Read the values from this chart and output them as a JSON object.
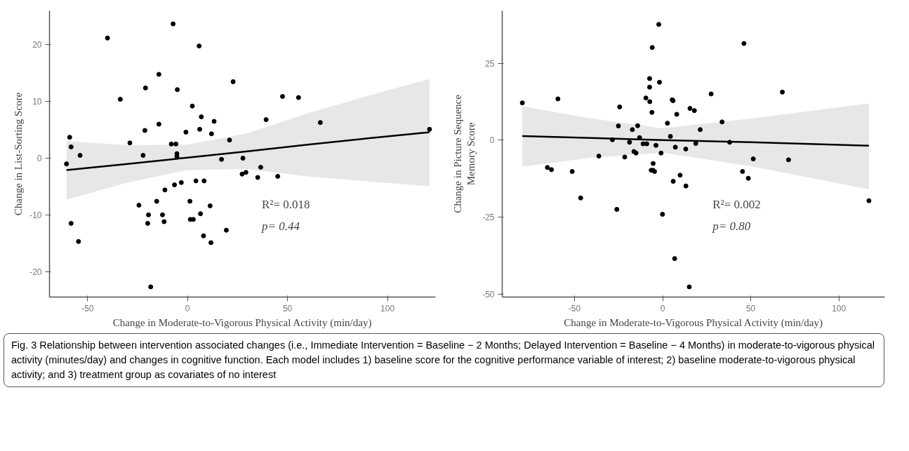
{
  "chart_data": [
    {
      "type": "scatter",
      "xlabel": "Change in Moderate-to-Vigorous Physical Activity (min/day)",
      "ylabel": "Change in List-Sorting Score",
      "xlim": [
        -69,
        124
      ],
      "ylim": [
        -24.5,
        26
      ],
      "xticks": [
        -50,
        0,
        50,
        100
      ],
      "yticks": [
        -20,
        -10,
        0,
        10,
        20
      ],
      "grid": false,
      "annotations": [
        "R²= 0.018",
        "p= 0.44",
        "Fig. 3 Relationship between intervention associated changes (i.e., Immediate Intervention = Baseline − 2 Months; Delayed Intervention = Baseline − 4 Months) in moderate-to-vigorous physical activity (minutes/day) and changes in cognitive function. Each model includes 1) baseline score for the cognitive performance variable of interest; 2) baseline moderate-to-vigorous physical activity; and 3) treatment group as covariates of no interest"
      ],
      "series": [
        {
          "marker": "circle",
          "color": "#000000",
          "x": [
            -60.5,
            -58.9,
            -58.2,
            -53.7,
            -40.0,
            -33.6,
            -28.8,
            -22.2,
            -21.3,
            -21.0,
            -14.3,
            -14.3,
            -8.1,
            -7.2,
            -5.8,
            -5.3,
            -5.3,
            -5.1,
            -0.8,
            2.4,
            5.8,
            6.1,
            6.9,
            12.0,
            13.3,
            17.0,
            21.0,
            22.8,
            27.7,
            27.3,
            29.2,
            47.5,
            55.5,
            39.3,
            66.4,
            121.0,
            36.6,
            35.1,
            45.1,
            -58.2,
            -54.5,
            -24.3,
            -19.5,
            -19.9,
            -18.4,
            -15.4,
            -12.5,
            -11.7,
            -11.3,
            -6.5,
            -3.1,
            1.2,
            1.4,
            2.9,
            4.2,
            6.5,
            8.0,
            8.3,
            11.3,
            11.7,
            19.4
          ],
          "values": [
            -1.0,
            3.7,
            2.0,
            0.5,
            21.2,
            10.4,
            2.7,
            0.5,
            4.9,
            12.4,
            14.8,
            6.0,
            2.5,
            23.7,
            2.5,
            0.8,
            0.3,
            12.1,
            4.6,
            9.2,
            19.8,
            5.1,
            7.3,
            4.3,
            6.5,
            -0.2,
            3.2,
            13.5,
            0.0,
            -2.8,
            -2.5,
            10.9,
            10.7,
            6.8,
            6.3,
            5.1,
            -1.6,
            -3.4,
            -3.2,
            -11.5,
            -14.7,
            -8.3,
            -10.0,
            -11.5,
            -22.7,
            -7.6,
            -10.0,
            -11.2,
            -5.6,
            -4.7,
            -4.3,
            -7.6,
            -10.8,
            -10.8,
            -4.0,
            -9.8,
            -13.7,
            -4.0,
            -8.4,
            -14.9,
            -12.7
          ]
        },
        {
          "type": "line",
          "color": "#000000",
          "x": [
            -60.5,
            -30,
            0,
            30,
            60,
            90,
            121.0
          ],
          "values": [
            -2.1,
            -1.0,
            0.1,
            1.2,
            2.4,
            3.5,
            4.6
          ],
          "lower": [
            -7.3,
            -4.3,
            -2.1,
            -1.9,
            -3.2,
            -4.1,
            -4.9
          ],
          "upper": [
            3.0,
            2.3,
            2.4,
            4.4,
            7.9,
            11.0,
            14.0
          ]
        }
      ]
    },
    {
      "type": "scatter",
      "xlabel": "Change in Moderate-to-Vigorous Physical Activity (min/day)",
      "ylabel": "Change in Picture Sequence\nMemory Score",
      "xlim": [
        -91,
        126
      ],
      "ylim": [
        -51,
        42
      ],
      "xticks": [
        -50,
        0,
        50,
        100
      ],
      "yticks": [
        -50,
        -25,
        0,
        25
      ],
      "grid": false,
      "annotations": [
        "R²= 0.002",
        "p= 0.80"
      ],
      "series": [
        {
          "marker": "circle",
          "color": "#000000",
          "x": [
            -79.6,
            -65.4,
            -63.1,
            -59.4,
            -51.3,
            -46.5,
            -36.2,
            -28.5,
            -26.0,
            -25.1,
            -24.4,
            -21.5,
            -18.8,
            -17.2,
            -16.3,
            -15.1,
            -14.2,
            -13.1,
            -11.1,
            -9.5,
            -9.0,
            -7.4,
            -7.4,
            -7.3,
            -6.1,
            -5.9,
            -5.4,
            -6.5,
            -5.4,
            -4.6,
            -3.8,
            -2.2,
            -1.8,
            -0.9,
            -0.1,
            2.7,
            4.4,
            5.4,
            5.9,
            6.0,
            6.8,
            7.2,
            8.0,
            9.9,
            13.2,
            13.1,
            15.5,
            18.0,
            15.1,
            18.8,
            21.3,
            27.5,
            33.7,
            38.0,
            45.3,
            48.6,
            46.1,
            51.4,
            67.9,
            71.4,
            117.0
          ],
          "values": [
            12.1,
            -8.9,
            -9.6,
            13.4,
            -10.2,
            -18.8,
            -5.2,
            0.1,
            -22.5,
            4.6,
            10.8,
            -5.5,
            -0.7,
            3.4,
            -3.7,
            -4.2,
            4.7,
            0.8,
            -1.2,
            13.7,
            -1.2,
            20.0,
            17.2,
            12.5,
            9.0,
            30.1,
            -7.6,
            -9.8,
            -9.8,
            -10.2,
            -1.7,
            37.6,
            18.8,
            -4.2,
            -24.1,
            5.5,
            1.2,
            13.1,
            12.8,
            -13.4,
            -38.5,
            -2.3,
            8.4,
            -11.4,
            -14.9,
            -2.9,
            10.3,
            9.6,
            -47.7,
            -1.1,
            3.4,
            15.0,
            5.9,
            -0.7,
            -10.2,
            -12.4,
            31.4,
            -6.1,
            15.6,
            -6.4,
            -19.7
          ]
        },
        {
          "type": "line",
          "color": "#000000",
          "x": [
            -79.6,
            -40,
            0,
            50,
            117.0
          ],
          "values": [
            1.3,
            0.7,
            0.0,
            -0.7,
            -1.8
          ],
          "lower": [
            -8.6,
            -5.7,
            -4.1,
            -8.5,
            -16.0
          ],
          "upper": [
            11.0,
            7.0,
            3.8,
            7.0,
            11.9
          ]
        }
      ]
    }
  ]
}
